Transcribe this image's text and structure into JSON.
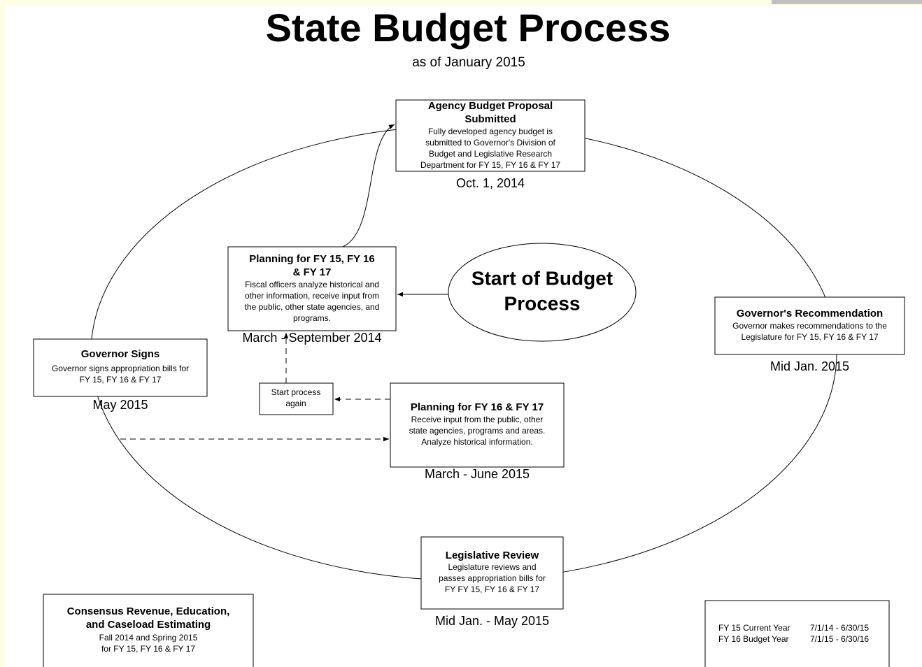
{
  "header": {
    "title": "State Budget Process",
    "subtitle": "as of January 2015"
  },
  "nodes": [
    {
      "title": [
        "Agency Budget Proposal",
        "Submitted"
      ],
      "text": [
        "Fully developed agency budget is",
        "submitted to Governor's Division of",
        "Budget and Legislative Research",
        "Department for FY 15, FY 16 & FY 17"
      ],
      "date": "Oct. 1, 2014"
    },
    {
      "title": [
        "Planning for FY 15, FY 16",
        "& FY 17"
      ],
      "text": [
        "Fiscal officers analyze historical and",
        "other information, receive input from",
        "the public, other state agencies, and",
        "programs."
      ],
      "date": "March - September 2014"
    },
    {
      "title": [
        "Governor's Recommendation"
      ],
      "text": [
        "Governor makes recommendations to the",
        "Legislature for FY 15, FY 16 & FY 17"
      ],
      "date": "Mid Jan. 2015"
    },
    {
      "title": [
        "Governor Signs"
      ],
      "text": [
        "Governor signs appropriation bills for",
        "FY 15, FY 16 & FY 17"
      ],
      "date": "May 2015"
    },
    {
      "title": [
        "Planning for FY 16 & FY 17"
      ],
      "text": [
        "Receive input from the public, other",
        "state agencies, programs and areas.",
        "Analyze historical information."
      ],
      "date": "March - June 2015"
    },
    {
      "title": [
        "Legislative Review"
      ],
      "text": [
        "Legislature reviews and",
        "passes appropriation bills for",
        "FY FY 15, FY 16 & FY 17"
      ],
      "date": "Mid Jan. - May 2015"
    },
    {
      "title": [
        "Consensus Revenue, Education,",
        "and Caseload Estimating"
      ],
      "text": [
        "Fall 2014 and Spring 2015",
        "for FY 15, FY 16 & FY 17"
      ]
    }
  ],
  "start": [
    "Start of Budget",
    "Process"
  ],
  "restart": [
    "Start process",
    "again"
  ],
  "legend": [
    [
      "FY 15 Current Year",
      "7/1/14 - 6/30/15"
    ],
    [
      "FY 16 Budget Year",
      "7/1/15 - 6/30/16"
    ]
  ]
}
